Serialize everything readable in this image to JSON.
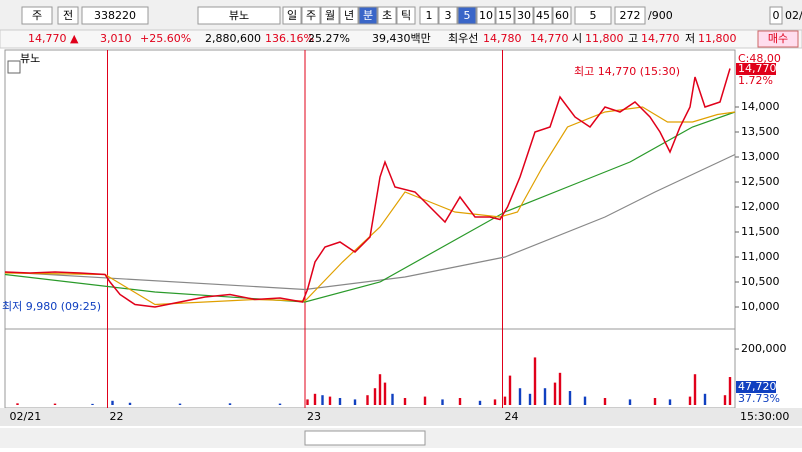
{
  "toolbar": {
    "market": "주",
    "scope": "전",
    "code": "338220",
    "name": "뷰노",
    "periods": [
      "일",
      "주",
      "월",
      "년",
      "분",
      "초",
      "틱"
    ],
    "active_period": "분",
    "intervals": [
      "1",
      "3",
      "5",
      "10",
      "15",
      "30",
      "45",
      "60"
    ],
    "active_interval": "5",
    "count": "5",
    "view": "272",
    "total": "/900",
    "zero": "0",
    "date": "02/"
  },
  "info_bar": {
    "price": "14,770 ▲",
    "change": "3,010",
    "rate": "+25.60%",
    "volume": "2,880,600",
    "volume_ratio": "136.16%",
    "turnover": "25.27%",
    "amount": "39,430백만",
    "best_label": "최우선",
    "ask": "14,780",
    "bid": "14,770",
    "open_label": "시",
    "open": "11,800",
    "high_label": "고",
    "high": "14,770",
    "low_label": "저",
    "low": "11,800",
    "button": "매수"
  },
  "chart_data": {
    "type": "line",
    "legend": "뷰노",
    "xlim": [
      0,
      292
    ],
    "ylim": [
      9580,
      15140
    ],
    "yticks": [
      {
        "value": 10000,
        "label": "10,000"
      },
      {
        "value": 10500,
        "label": "10,500"
      },
      {
        "value": 11000,
        "label": "11,000"
      },
      {
        "value": 11500,
        "label": "11,500"
      },
      {
        "value": 12000,
        "label": "12,000"
      },
      {
        "value": 12500,
        "label": "12,500"
      },
      {
        "value": 13000,
        "label": "13,000"
      },
      {
        "value": 13500,
        "label": "13,500"
      },
      {
        "value": 14000,
        "label": "14,000"
      }
    ],
    "dates": [
      {
        "x": 1,
        "label": "02/21"
      },
      {
        "x": 41,
        "label": "22"
      },
      {
        "x": 120,
        "label": "23"
      },
      {
        "x": 199,
        "label": "24"
      }
    ],
    "series": [
      {
        "color": "#888888",
        "x": [
          0,
          120,
          160,
          200,
          240,
          260,
          292
        ],
        "values": [
          10700,
          10350,
          10600,
          11000,
          11800,
          12300,
          13050
        ]
      },
      {
        "color": "#2a9a2a",
        "x": [
          0,
          60,
          120,
          150,
          200,
          230,
          250,
          275,
          292
        ],
        "values": [
          10650,
          10300,
          10100,
          10500,
          11900,
          12500,
          12900,
          13600,
          13900
        ]
      },
      {
        "color": "#e0a000",
        "x": [
          0,
          40,
          60,
          100,
          120,
          135,
          150,
          160,
          170,
          180,
          198,
          205,
          215,
          225,
          240,
          255,
          265,
          275,
          285,
          292
        ],
        "values": [
          10680,
          10650,
          10050,
          10150,
          10120,
          10900,
          11600,
          12300,
          12100,
          11900,
          11800,
          11900,
          12800,
          13600,
          13900,
          14000,
          13700,
          13700,
          13850,
          13900
        ]
      },
      {
        "color": "#e0001a",
        "x": [
          0,
          10,
          20,
          30,
          40,
          42,
          46,
          52,
          60,
          70,
          80,
          90,
          100,
          110,
          119,
          121,
          124,
          128,
          134,
          140,
          146,
          150,
          152,
          156,
          164,
          170,
          176,
          182,
          188,
          194,
          198,
          201,
          206,
          212,
          218,
          222,
          228,
          234,
          240,
          246,
          252,
          258,
          262,
          266,
          270,
          274,
          276,
          280,
          286,
          290
        ],
        "values": [
          10700,
          10680,
          10700,
          10680,
          10650,
          10500,
          10250,
          10050,
          10000,
          10100,
          10200,
          10250,
          10150,
          10180,
          10100,
          10350,
          10900,
          11200,
          11300,
          11100,
          11400,
          12600,
          12900,
          12400,
          12300,
          12000,
          11700,
          12200,
          11800,
          11800,
          11750,
          12000,
          12600,
          13500,
          13600,
          14200,
          13800,
          13600,
          14000,
          13900,
          14100,
          13800,
          13500,
          13100,
          13600,
          14000,
          14600,
          14000,
          14100,
          14770
        ]
      }
    ],
    "high_annotation": "최고 14,770 (15:30)",
    "low_annotation": "최저 9,980 (09:25)",
    "axis_labels": {
      "compare": "C:48,00",
      "last": "14,770",
      "last_rate": "1.72%",
      "volume_last": "47,720",
      "volume_rate": "37.73%",
      "time": "15:30:00"
    },
    "volume": {
      "ylim": [
        0,
        268000
      ],
      "yticks": [
        {
          "value": 200000,
          "label": "200,000"
        }
      ],
      "series": [
        {
          "color": "#e0001a",
          "x": [
            5,
            20,
            121,
            124,
            130,
            145,
            148,
            150,
            152,
            160,
            168,
            182,
            196,
            200,
            202,
            212,
            220,
            222,
            240,
            260,
            274,
            276,
            288,
            290
          ],
          "values": [
            6000,
            5000,
            20000,
            40000,
            30000,
            35000,
            60000,
            110000,
            80000,
            25000,
            30000,
            25000,
            20000,
            30000,
            105000,
            170000,
            80000,
            115000,
            25000,
            25000,
            30000,
            110000,
            35000,
            100000
          ]
        },
        {
          "color": "#1040c0",
          "x": [
            35,
            43,
            50,
            70,
            90,
            110,
            127,
            134,
            140,
            155,
            175,
            190,
            206,
            210,
            216,
            226,
            232,
            250,
            266,
            280
          ],
          "values": [
            4000,
            15000,
            8000,
            5000,
            6000,
            5000,
            35000,
            25000,
            20000,
            40000,
            20000,
            15000,
            60000,
            40000,
            60000,
            50000,
            30000,
            20000,
            20000,
            40000
          ]
        }
      ]
    }
  }
}
